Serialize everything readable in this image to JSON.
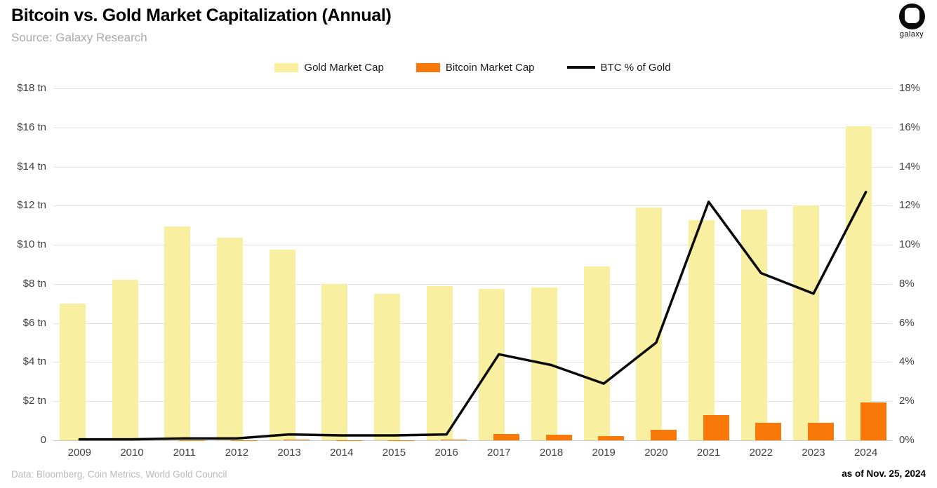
{
  "header": {
    "title": "Bitcoin vs. Gold Market Capitalization (Annual)",
    "subtitle": "Source: Galaxy Research",
    "logo_text": "galaxy"
  },
  "legend": [
    {
      "label": "Gold Market Cap",
      "swatch": "#F9EFA0",
      "type": "rect"
    },
    {
      "label": "Bitcoin Market Cap",
      "swatch": "#F8790A",
      "type": "rect"
    },
    {
      "label": "BTC % of Gold",
      "swatch": "#0a0a0a",
      "type": "line"
    }
  ],
  "footer": {
    "left": "Data: Bloomberg, Coin Metrics, World Gold Council",
    "right": "as of Nov. 25, 2024"
  },
  "colors": {
    "gold_bar": "#F9EFA0",
    "bitcoin_bar": "#F8790A",
    "line": "#0a0a0a",
    "gridline": "#e2e2e2",
    "axis_text": "#414141"
  },
  "chart_data": {
    "type": "bar",
    "title": "Bitcoin vs. Gold Market Capitalization (Annual)",
    "categories": [
      "2009",
      "2010",
      "2011",
      "2012",
      "2013",
      "2014",
      "2015",
      "2016",
      "2017",
      "2018",
      "2019",
      "2020",
      "2021",
      "2022",
      "2023",
      "2024"
    ],
    "series": [
      {
        "name": "Gold Market Cap",
        "type": "bar",
        "axis": "left",
        "unit": "$ tn",
        "color": "#F9EFA0",
        "values": [
          7.0,
          8.2,
          10.95,
          10.35,
          9.75,
          8.0,
          7.5,
          7.9,
          7.75,
          7.8,
          8.9,
          11.9,
          11.25,
          11.8,
          12.0,
          16.05
        ]
      },
      {
        "name": "Bitcoin Market Cap",
        "type": "bar",
        "axis": "left",
        "unit": "$ tn",
        "color": "#F8790A",
        "values": [
          0.0,
          0.0,
          0.01,
          0.01,
          0.02,
          0.01,
          0.01,
          0.02,
          0.33,
          0.3,
          0.23,
          0.55,
          1.28,
          0.91,
          0.89,
          1.95
        ]
      },
      {
        "name": "BTC % of Gold",
        "type": "line",
        "axis": "right",
        "unit": "%",
        "color": "#0a0a0a",
        "values": [
          0.05,
          0.05,
          0.1,
          0.1,
          0.3,
          0.25,
          0.25,
          0.3,
          4.4,
          3.85,
          2.9,
          5.0,
          12.2,
          8.55,
          7.5,
          12.7
        ]
      }
    ],
    "left_axis": {
      "label": "",
      "min": 0,
      "max": 18,
      "ticks": [
        "$18 tn",
        "$16 tn",
        "$14 tn",
        "$12 tn",
        "$10 tn",
        "$8 tn",
        "$6 tn",
        "$4 tn",
        "$2 tn",
        "0"
      ]
    },
    "right_axis": {
      "label": "",
      "min": 0,
      "max": 18,
      "ticks": [
        "18%",
        "16%",
        "14%",
        "12%",
        "10%",
        "8%",
        "6%",
        "4%",
        "2%",
        "0%"
      ]
    },
    "grid": true,
    "legend_position": "top"
  }
}
